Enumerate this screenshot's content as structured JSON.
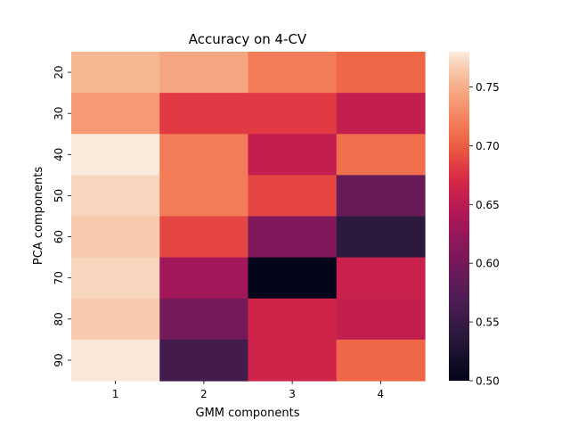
{
  "chart_data": {
    "type": "heatmap",
    "title": "Accuracy on 4-CV",
    "xlabel": "GMM components",
    "ylabel": "PCA components",
    "x_categories": [
      "1",
      "2",
      "3",
      "4"
    ],
    "y_categories": [
      "20",
      "30",
      "40",
      "50",
      "60",
      "70",
      "80",
      "90"
    ],
    "values": [
      [
        0.755,
        0.745,
        0.718,
        0.705
      ],
      [
        0.738,
        0.682,
        0.682,
        0.655
      ],
      [
        0.78,
        0.718,
        0.655,
        0.71
      ],
      [
        0.77,
        0.718,
        0.688,
        0.59
      ],
      [
        0.765,
        0.688,
        0.61,
        0.54
      ],
      [
        0.77,
        0.632,
        0.5,
        0.66
      ],
      [
        0.765,
        0.6,
        0.665,
        0.655
      ],
      [
        0.778,
        0.56,
        0.665,
        0.705
      ]
    ],
    "colorbar": {
      "min": 0.5,
      "max": 0.78,
      "ticks": [
        "0.50",
        "0.55",
        "0.60",
        "0.65",
        "0.70",
        "0.75"
      ],
      "colormap": "rocket"
    },
    "grid": false
  }
}
